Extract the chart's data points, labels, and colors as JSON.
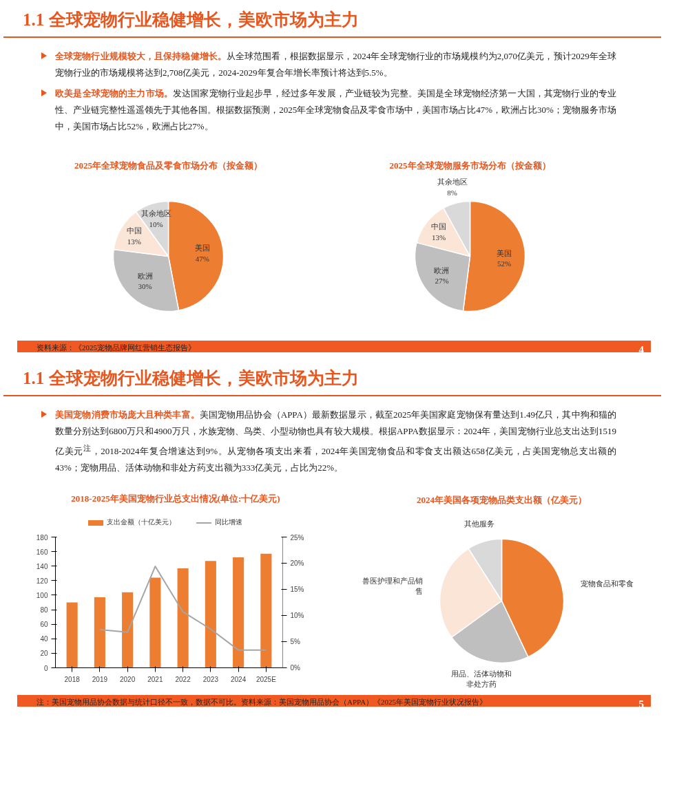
{
  "chart_data": [
    {
      "type": "pie",
      "title": "2025年全球宠物食品及零食市场分布（按金额）",
      "categories": [
        "美国",
        "欧洲",
        "中国",
        "其余地区"
      ],
      "values": [
        47,
        30,
        13,
        10
      ],
      "colors": [
        "#ed7d31",
        "#bfbfbf",
        "#fbe5d6",
        "#d9d9d9"
      ],
      "value_labels": [
        "47%",
        "30%",
        "13%",
        "10%"
      ],
      "annotations": [
        "1.1 全球宠物行业稳健增长，美欧市场为主力",
        "全球宠物行业规模较大，且保持稳健增长。",
        "从全球范围看，根据数据显示，2024年全球宠物行业的市场规模约为2,070亿美元，预计2029年全球宠物行业的市场规模将达到2,708亿美元，2024-2029年复合年增长率预计将达到5.5%。",
        "欧美是全球宠物的主力市场。",
        "发达国家宠物行业起步早，经过多年发展，产业链较为完整。美国是全球宠物经济第一大国，其宠物行业的专业性、产业链完整性遥遥领先于其他各国。根据数据预测，2025年全球宠物食品及零食市场中，美国市场占比47%，欧洲占比30%；宠物服务市场中，美国市场占比52%，欧洲占比27%。"
      ]
    },
    {
      "type": "pie",
      "title": "2025年全球宠物服务市场分布（按金额）",
      "categories": [
        "美国",
        "欧洲",
        "中国",
        "其余地区"
      ],
      "values": [
        52,
        27,
        13,
        8
      ],
      "colors": [
        "#ed7d31",
        "#bfbfbf",
        "#fbe5d6",
        "#d9d9d9"
      ],
      "value_labels": [
        "52%",
        "27%",
        "13%",
        "8%"
      ],
      "annotations": [
        "资料来源：《2025宠物品牌网红营销生态报告》",
        "4"
      ]
    },
    {
      "type": "bar",
      "title": "2018-2025年美国宠物行业总支出情况(单位:十亿美元)",
      "categories": [
        "2018",
        "2019",
        "2020",
        "2021",
        "2022",
        "2023",
        "2024",
        "2025E"
      ],
      "series": [
        {
          "name": "支出金额（十亿美元）",
          "color": "#ed7d31",
          "values": [
            90,
            97,
            104,
            124,
            137,
            147,
            152,
            157
          ]
        },
        {
          "name": "同比增速",
          "type": "line",
          "axis": "y2",
          "color": "#a5a5a5",
          "values": [
            null,
            7.3,
            6.8,
            19.4,
            10.7,
            7.4,
            3.4,
            3.4
          ]
        }
      ],
      "ylim": [
        0,
        180
      ],
      "yticks": [
        0,
        20,
        40,
        60,
        80,
        100,
        120,
        140,
        160,
        180
      ],
      "y2lim": [
        0,
        25
      ],
      "y2ticks": [
        {
          "value": 0,
          "label": "0%"
        },
        {
          "value": 5,
          "label": "5%"
        },
        {
          "value": 10,
          "label": "10%"
        },
        {
          "value": 15,
          "label": "15%"
        },
        {
          "value": 20,
          "label": "20%"
        },
        {
          "value": 25,
          "label": "25%"
        }
      ],
      "legend": "top",
      "grid": false,
      "annotations": [
        "1.1 全球宠物行业稳健增长，美欧市场为主力",
        "美国宠物消费市场庞大且种类丰富。",
        "美国宠物用品协会（APPA）最新数据显示，截至2025年美国家庭宠物保有量达到1.49亿只，其中狗和猫的数量分别达到6800万只和4900万只，水族宠物、鸟类、小型动物也具有较大规模。根据APPA数据显示：2024年，美国宠物行业总支出达到1519亿美元$^{注}$，2018-2024年复合增速达到9%。从宠物各项支出来看，2024年美国宠物食品和零食支出额达658亿美元，占美国宠物总支出额的43%；宠物用品、活体动物和非处方药支出额为333亿美元，占比为22%。"
      ]
    },
    {
      "type": "pie",
      "title": "2024年美国各项宠物品类支出额（亿美元）",
      "categories": [
        "宠物食品和零食",
        "用品、活体动物和非处方药",
        "兽医护理和产品销售",
        "其他服务"
      ],
      "values": [
        43,
        22,
        26,
        9
      ],
      "colors": [
        "#ed7d31",
        "#bfbfbf",
        "#fbe5d6",
        "#d9d9d9"
      ],
      "annotations": [
        "注：美国宠物用品协会数据与统计口径不一致，数据不可比。资料来源：美国宠物用品协会（APPA）《2025年美国宠物行业状况报告》",
        "5"
      ]
    }
  ]
}
